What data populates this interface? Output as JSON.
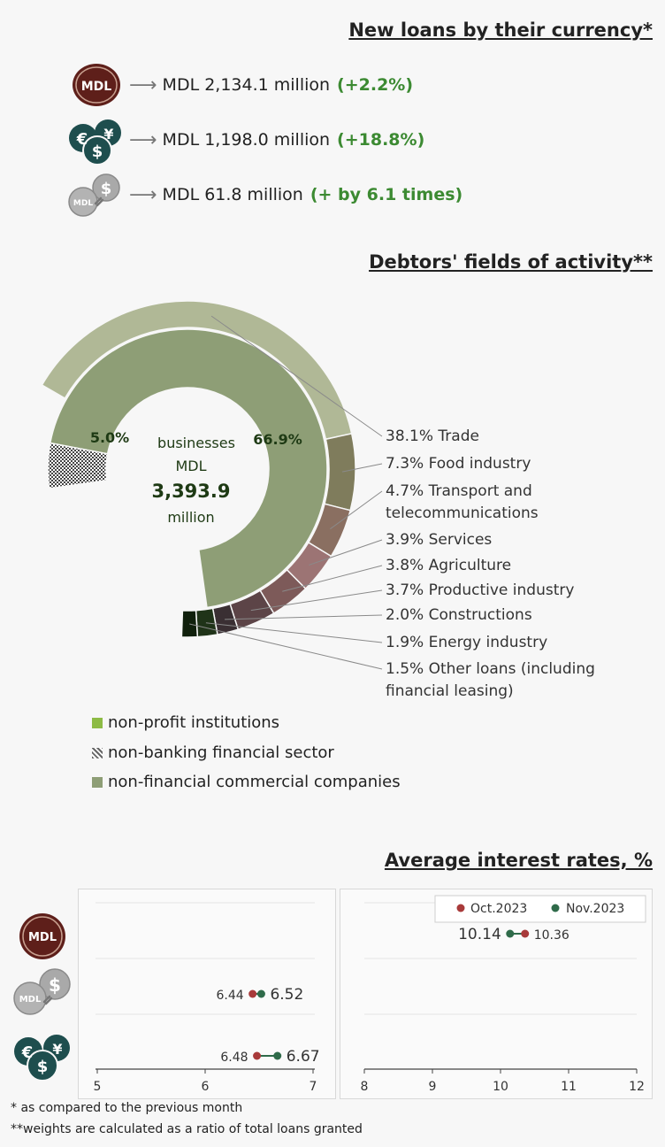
{
  "header_currency": "New loans by their currency*",
  "currency_rows": [
    {
      "icon": "mdl-coin-icon",
      "amount": "MDL 2,134.1 million",
      "change": "(+2.2%)"
    },
    {
      "icon": "euro-dollar-yen-coins-icon",
      "amount": "MDL 1,198.0 million",
      "change": "(+18.8%)"
    },
    {
      "icon": "mdl-dollar-linked-coins-icon",
      "amount": "MDL 61.8 million",
      "change": "(+ by 6.1 times)"
    }
  ],
  "icon_labels": {
    "mdl": "MDL"
  },
  "header_activity": "Debtors' fields of activity**",
  "header_rates": "Average interest rates, %",
  "legend": [
    {
      "label": "non-profit institutions",
      "color": "#8dbb45"
    },
    {
      "label": "non-banking financial sector",
      "color": "#aaaaaa"
    },
    {
      "label": "non-financial commercial companies",
      "color": "#8e9e76"
    }
  ],
  "footnotes": [
    "* as compared to the previous month",
    "**weights are calculated as a ratio of total loans granted"
  ],
  "chart_data": [
    {
      "type": "pie",
      "center_text": [
        "businesses",
        "MDL",
        "3,393.9",
        "million"
      ],
      "inner_ring": [
        {
          "label": "5.0%",
          "value": 5.0,
          "category": "non-banking financial sector"
        },
        {
          "label": "66.9%",
          "value": 66.9,
          "category": "non-financial commercial companies"
        }
      ],
      "outer_ring": [
        {
          "pct": "38.1%",
          "name": "Trade",
          "value": 38.1,
          "color": "#b0b896"
        },
        {
          "pct": "7.3%",
          "name": "Food industry",
          "value": 7.3,
          "color": "#7f7c5c"
        },
        {
          "pct": "4.7%",
          "name": "Transport and telecommunications",
          "value": 4.7,
          "color": "#8a6f61"
        },
        {
          "pct": "3.9%",
          "name": "Services",
          "value": 3.9,
          "color": "#9c7474"
        },
        {
          "pct": "3.8%",
          "name": "Agriculture",
          "value": 3.8,
          "color": "#7d5a59"
        },
        {
          "pct": "3.7%",
          "name": "Productive industry",
          "value": 3.7,
          "color": "#5c4447"
        },
        {
          "pct": "2.0%",
          "name": "Constructions",
          "value": 2.0,
          "color": "#3a2f33"
        },
        {
          "pct": "1.9%",
          "name": "Energy industry",
          "value": 1.9,
          "color": "#1f3318"
        },
        {
          "pct": "1.5%",
          "name": "Other loans (including financial leasing)",
          "value": 1.5,
          "color": "#10200c"
        }
      ]
    },
    {
      "type": "scatter",
      "legend": [
        {
          "name": "Oct.2023",
          "color": "#a83a3a"
        },
        {
          "name": "Nov.2023",
          "color": "#2f6b4a"
        }
      ],
      "panels": [
        {
          "xlim": [
            5,
            7
          ],
          "ticks": [
            "5",
            "6",
            "7"
          ],
          "points": [
            {
              "row": "mdl-dollar-linked",
              "oct": 6.44,
              "nov": 6.52,
              "oct_label": "6.44",
              "nov_label": "6.52"
            },
            {
              "row": "euro-dollar-yen",
              "oct": 6.48,
              "nov": 6.67,
              "oct_label": "6.48",
              "nov_label": "6.67"
            }
          ]
        },
        {
          "xlim": [
            8,
            12
          ],
          "ticks": [
            "8",
            "9",
            "10",
            "11",
            "12"
          ],
          "points": [
            {
              "row": "mdl",
              "oct": 10.36,
              "nov": 10.14,
              "oct_label": "10.36",
              "nov_label": "10.14"
            }
          ]
        }
      ]
    }
  ]
}
